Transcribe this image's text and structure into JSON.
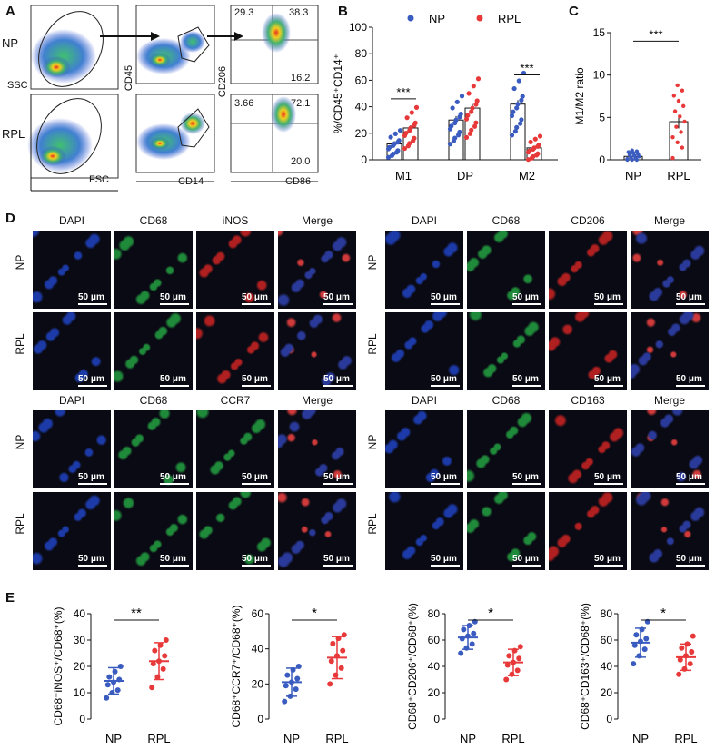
{
  "panels": {
    "A": "A",
    "B": "B",
    "C": "C",
    "D": "D",
    "E": "E"
  },
  "flow": {
    "groups": [
      "NP",
      "RPL"
    ],
    "axes": {
      "ssc": "SSC",
      "fsc": "FSC",
      "cd45": "CD45",
      "cd14": "CD14",
      "cd206": "CD206",
      "cd86": "CD86"
    },
    "quadrants": {
      "NP": {
        "ul": "29.3",
        "ur": "38.3",
        "lr": "16.2"
      },
      "RPL": {
        "ul": "3.66",
        "ur": "72.1",
        "lr": "20.0"
      }
    }
  },
  "micro": {
    "top_left_headers": [
      "DAPI",
      "CD68",
      "iNOS",
      "Merge"
    ],
    "top_right_headers": [
      "DAPI",
      "CD68",
      "CD206",
      "Merge"
    ],
    "bottom_left_headers": [
      "DAPI",
      "CD68",
      "CCR7",
      "Merge"
    ],
    "bottom_right_headers": [
      "DAPI",
      "CD68",
      "CD163",
      "Merge"
    ],
    "rows": [
      "NP",
      "RPL"
    ],
    "scale": "50 μm"
  },
  "colors": {
    "np": "#3a5bbf",
    "rpl": "#e8393a"
  },
  "chart_data": [
    {
      "id": "B",
      "type": "bar",
      "categories": [
        "M1",
        "DP",
        "M2"
      ],
      "series": [
        {
          "name": "NP",
          "values": [
            12,
            30,
            42
          ],
          "sem": [
            2,
            3,
            3
          ]
        },
        {
          "name": "RPL",
          "values": [
            24,
            39,
            9
          ],
          "sem": [
            2,
            3,
            1.5
          ]
        }
      ],
      "ylabel": "%/CD45⁺CD14⁺",
      "ylim": [
        0,
        100
      ],
      "yticks": [
        0,
        20,
        40,
        60,
        80,
        100
      ],
      "annotations": [
        {
          "category": "M1",
          "text": "***"
        },
        {
          "category": "M2",
          "text": "***"
        }
      ],
      "legend": "top"
    },
    {
      "id": "C",
      "type": "bar",
      "categories": [
        "NP",
        "RPL"
      ],
      "values": [
        0.4,
        4.5
      ],
      "sem": [
        0.1,
        0.8
      ],
      "ylabel": "M1/M2 ratio",
      "ylim": [
        0,
        15
      ],
      "yticks": [
        0,
        5,
        10,
        15
      ],
      "annotation": "***"
    },
    {
      "id": "E1",
      "type": "scatter",
      "categories": [
        "NP",
        "RPL"
      ],
      "means": [
        14.5,
        22
      ],
      "sd": [
        5,
        7
      ],
      "points": [
        [
          8,
          10,
          11,
          13,
          14,
          15,
          16,
          18,
          20
        ],
        [
          12,
          16,
          19,
          21,
          22,
          24,
          26,
          28,
          30
        ]
      ],
      "ylabel": "CD68⁺iNOS⁺/CD68⁺(%)",
      "ylim": [
        0,
        40
      ],
      "yticks": [
        0,
        10,
        20,
        30,
        40
      ],
      "annotation": "**"
    },
    {
      "id": "E2",
      "type": "scatter",
      "categories": [
        "NP",
        "RPL"
      ],
      "means": [
        21,
        35
      ],
      "sd": [
        8,
        12
      ],
      "points": [
        [
          10,
          13,
          17,
          19,
          21,
          23,
          25,
          28,
          30
        ],
        [
          20,
          25,
          29,
          33,
          36,
          39,
          43,
          46,
          48
        ]
      ],
      "ylabel": "CD68⁺CCR7⁺/CD68⁺(%)",
      "ylim": [
        0,
        60
      ],
      "yticks": [
        0,
        20,
        40,
        60
      ],
      "annotation": "*"
    },
    {
      "id": "E3",
      "type": "scatter",
      "categories": [
        "NP",
        "RPL"
      ],
      "means": [
        62,
        43
      ],
      "sd": [
        9,
        10
      ],
      "points": [
        [
          50,
          54,
          57,
          61,
          63,
          65,
          68,
          71,
          74
        ],
        [
          30,
          34,
          37,
          41,
          43,
          46,
          48,
          52,
          55
        ]
      ],
      "ylabel": "CD68⁺CD206⁺/CD68⁺(%)",
      "ylim": [
        0,
        80
      ],
      "yticks": [
        0,
        20,
        40,
        60,
        80
      ],
      "annotation": "*"
    },
    {
      "id": "E4",
      "type": "scatter",
      "categories": [
        "NP",
        "RPL"
      ],
      "means": [
        58,
        47
      ],
      "sd": [
        11,
        10
      ],
      "points": [
        [
          42,
          48,
          53,
          56,
          59,
          61,
          64,
          68,
          74
        ],
        [
          34,
          38,
          42,
          45,
          48,
          51,
          54,
          57,
          63
        ]
      ],
      "ylabel": "CD68⁺CD163⁺/CD68⁺(%)",
      "ylim": [
        0,
        80
      ],
      "yticks": [
        0,
        20,
        40,
        60,
        80
      ],
      "annotation": "*"
    }
  ]
}
